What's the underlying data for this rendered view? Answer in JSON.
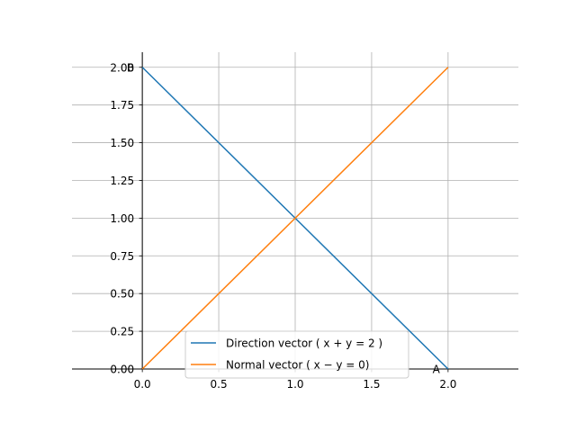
{
  "chart_data": {
    "type": "line",
    "title": "",
    "xlabel": "",
    "ylabel": "",
    "xlim": [
      -0.46,
      2.46
    ],
    "ylim": [
      0.0,
      2.1
    ],
    "grid": true,
    "legend_position": "bottom-center",
    "x_ticks": [
      0.0,
      0.5,
      1.0,
      1.5,
      2.0
    ],
    "x_tick_labels": [
      "0.0",
      "0.5",
      "1.0",
      "1.5",
      "2.0"
    ],
    "y_ticks": [
      0.0,
      0.25,
      0.5,
      0.75,
      1.0,
      1.25,
      1.5,
      1.75,
      2.0
    ],
    "y_tick_labels": [
      "0.00",
      "0.25",
      "0.50",
      "0.75",
      "1.00",
      "1.25",
      "1.50",
      "1.75",
      "2.00"
    ],
    "series": [
      {
        "name": "Direction vector ( x + y = 2 )",
        "color": "#1f77b4",
        "x": [
          0.0,
          2.0
        ],
        "y": [
          2.0,
          0.0
        ]
      },
      {
        "name": "Normal vector ( x − y = 0)",
        "color": "#ff7f0e",
        "x": [
          0.0,
          2.0
        ],
        "y": [
          0.0,
          2.0
        ]
      }
    ],
    "annotations": [
      {
        "text": "A",
        "x": 2.0,
        "y": 0.0
      },
      {
        "text": "B",
        "x": 0.0,
        "y": 2.0
      }
    ]
  }
}
